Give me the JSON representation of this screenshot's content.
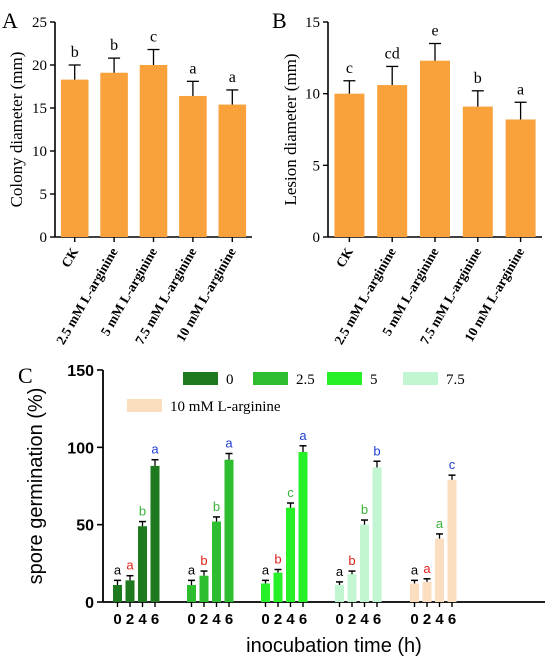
{
  "chart_data": [
    {
      "panel": "A",
      "type": "bar",
      "ylabel": "Colony diameter (mm)",
      "ylim": [
        0,
        25
      ],
      "yticks": [
        0,
        5,
        10,
        15,
        20,
        25
      ],
      "categories": [
        "CK",
        "2.5 mM L-arginine",
        "5 mM L-arginine",
        "7.5 mM L-arginine",
        "10 mM L-arginine"
      ],
      "values": [
        18.3,
        19.1,
        20.0,
        16.4,
        15.4
      ],
      "errors": [
        1.7,
        1.7,
        1.8,
        1.7,
        1.7
      ],
      "letters": [
        "b",
        "b",
        "c",
        "a",
        "a"
      ],
      "bar_color": "#F9A23C",
      "grid": false
    },
    {
      "panel": "B",
      "type": "bar",
      "ylabel": "Lesion diameter (mm)",
      "ylim": [
        0,
        15
      ],
      "yticks": [
        0,
        5,
        10,
        15
      ],
      "categories": [
        "CK",
        "2.5 mM L-arginine",
        "5 mM L-arginine",
        "7.5 mM L-arginine",
        "10 mM L-arginine"
      ],
      "values": [
        10.0,
        10.6,
        12.3,
        9.1,
        8.2
      ],
      "errors": [
        0.9,
        1.3,
        1.2,
        1.1,
        1.2
      ],
      "letters": [
        "c",
        "cd",
        "e",
        "b",
        "a"
      ],
      "bar_color": "#F9A23C",
      "grid": false
    },
    {
      "panel": "C",
      "type": "bar",
      "ylabel": "spore germination (%)",
      "xlabel": "inocubation time (h)",
      "ylim": [
        0,
        150
      ],
      "yticks": [
        0,
        50,
        100,
        150
      ],
      "x": [
        "0",
        "2",
        "4",
        "6"
      ],
      "legend_placement": "top",
      "series": [
        {
          "name": "0",
          "color": "#1F7A1F",
          "values": [
            11,
            14,
            49,
            88
          ],
          "errors": [
            3,
            3,
            3,
            4
          ],
          "letters": [
            "a",
            "a",
            "b",
            "a"
          ],
          "letter_colors": [
            "#000000",
            "#E0201B",
            "#3BB33B",
            "#1F3FD1"
          ]
        },
        {
          "name": "2.5",
          "color": "#2EBD2E",
          "values": [
            11,
            17,
            52,
            92
          ],
          "errors": [
            3,
            3,
            3,
            4
          ],
          "letters": [
            "a",
            "b",
            "b",
            "a"
          ],
          "letter_colors": [
            "#000000",
            "#E0201B",
            "#3BB33B",
            "#1F3FD1"
          ]
        },
        {
          "name": "5",
          "color": "#28F028",
          "values": [
            12,
            19,
            61,
            97
          ],
          "errors": [
            2,
            2,
            3,
            4
          ],
          "letters": [
            "a",
            "b",
            "c",
            "a"
          ],
          "letter_colors": [
            "#000000",
            "#E0201B",
            "#3BB33B",
            "#1F3FD1"
          ]
        },
        {
          "name": "7.5",
          "color": "#C2F5D2",
          "values": [
            11,
            18,
            50,
            87
          ],
          "errors": [
            2,
            2,
            3,
            4
          ],
          "letters": [
            "a",
            "b",
            "b",
            "b"
          ],
          "letter_colors": [
            "#000000",
            "#E0201B",
            "#3BB33B",
            "#1F3FD1"
          ]
        },
        {
          "name": "10 mM L-arginine",
          "color": "#FBDDBF",
          "values": [
            12,
            13,
            41,
            79
          ],
          "errors": [
            2,
            2,
            3,
            3
          ],
          "letters": [
            "a",
            "a",
            "a",
            "c"
          ],
          "letter_colors": [
            "#000000",
            "#E0201B",
            "#3BB33B",
            "#1F3FD1"
          ]
        }
      ],
      "grid": false
    }
  ],
  "panels": {
    "a": "A",
    "b": "B",
    "c": "C"
  }
}
